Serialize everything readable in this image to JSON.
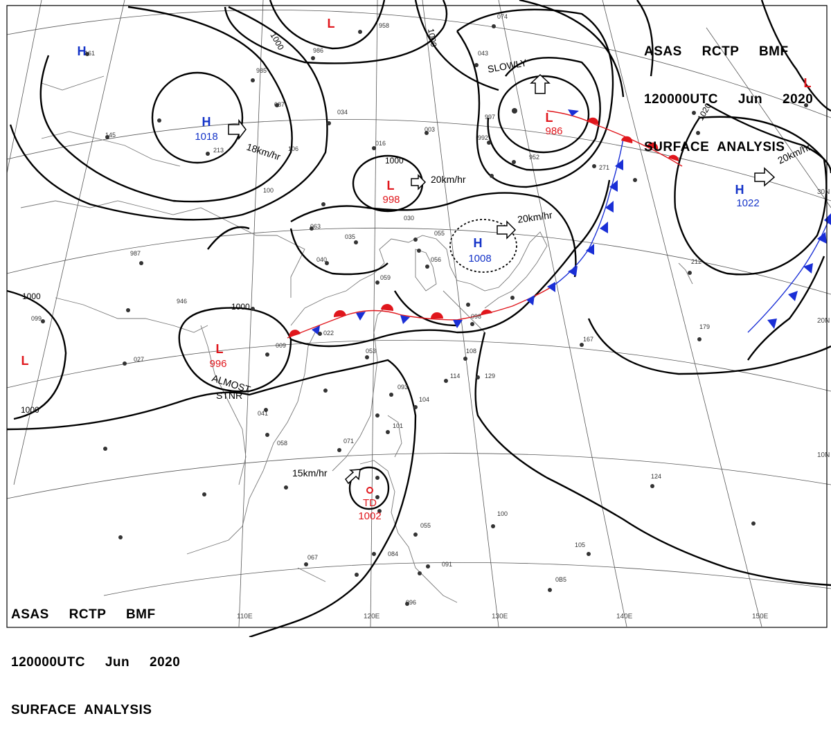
{
  "header": {
    "line1": "ASAS     RCTP     BMF",
    "line2": "120000UTC     Jun     2020",
    "line3": "SURFACE  ANALYSIS"
  },
  "colors": {
    "low": "#e0161c",
    "high": "#1433c8",
    "cold_front": "#1a2fd6",
    "warm_front": "#e0161c",
    "isobar": "#000000",
    "grid": "#555555",
    "coast": "#777777"
  },
  "longitude_labels": [
    "110E",
    "120E",
    "130E",
    "140E",
    "150E"
  ],
  "latitude_labels": [
    "30N",
    "20N",
    "10N"
  ],
  "pressure_systems": [
    {
      "kind": "H",
      "value": "1018"
    },
    {
      "kind": "H",
      "value": "1008"
    },
    {
      "kind": "H",
      "value": "1022"
    },
    {
      "kind": "H",
      "value": ""
    },
    {
      "kind": "L",
      "value": "998"
    },
    {
      "kind": "L",
      "value": "986"
    },
    {
      "kind": "L",
      "value": "996"
    },
    {
      "kind": "L",
      "value": ""
    },
    {
      "kind": "L",
      "value": ""
    },
    {
      "kind": "L",
      "value": ""
    },
    {
      "kind": "TD",
      "value": "1002"
    }
  ],
  "isobar_labels": [
    "1000",
    "1000",
    "1000",
    "1000",
    "1000",
    "1000",
    "1020"
  ],
  "motion_labels": [
    "18km/hr",
    "20km/hr",
    "20km/hr",
    "20km/hr",
    "15km/hr",
    "SLOWLY",
    "ALMOST",
    "STNR"
  ],
  "station_samples": [
    "034",
    "016",
    "003",
    "063",
    "035",
    "040",
    "059",
    "022",
    "053",
    "093",
    "104",
    "101",
    "071",
    "058",
    "041",
    "087",
    "129",
    "114",
    "108",
    "167",
    "179",
    "212",
    "124",
    "106",
    "100",
    "067",
    "084",
    "091",
    "009",
    "946",
    "987",
    "145",
    "161",
    "213",
    "985",
    "986",
    "958",
    "074",
    "043",
    "997",
    "992",
    "952",
    "271",
    "055",
    "056",
    "030",
    "027",
    "099",
    "105",
    "098",
    "100",
    "055",
    "096",
    "0B5"
  ]
}
